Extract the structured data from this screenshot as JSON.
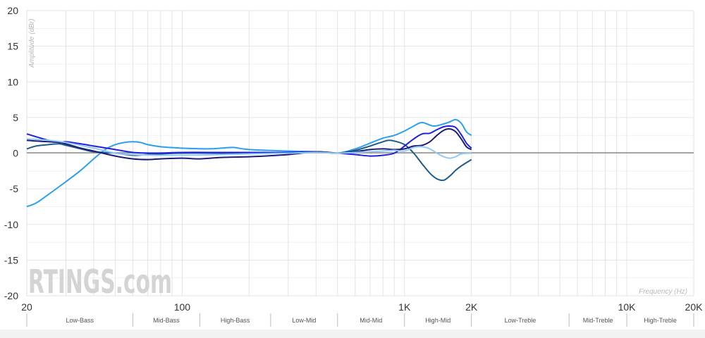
{
  "chart_data": {
    "type": "line",
    "title": "",
    "xlabel": "Frequency (Hz)",
    "ylabel": "Amplitude (dBr)",
    "xscale": "log",
    "xlim": [
      20,
      20000
    ],
    "ylim": [
      -20,
      20
    ],
    "grid": true,
    "legend": null,
    "watermark": "RTINGS.com",
    "yticks": [
      20,
      15,
      10,
      5,
      0,
      -5,
      -10,
      -15,
      -20
    ],
    "xticks": [
      {
        "value": 20,
        "label": "20"
      },
      {
        "value": 100,
        "label": "100"
      },
      {
        "value": 1000,
        "label": "1K"
      },
      {
        "value": 2000,
        "label": "2K"
      },
      {
        "value": 10000,
        "label": "10K"
      },
      {
        "value": 20000,
        "label": "20K"
      }
    ],
    "minor_gridlines_hz": [
      30,
      40,
      50,
      60,
      70,
      80,
      90,
      200,
      300,
      400,
      500,
      600,
      700,
      800,
      900,
      3000,
      4000,
      5000,
      6000,
      7000,
      8000,
      9000
    ],
    "bands": [
      {
        "label": "Low-Bass",
        "from": 20,
        "to": 60
      },
      {
        "label": "Mid-Bass",
        "from": 60,
        "to": 120
      },
      {
        "label": "High-Bass",
        "from": 120,
        "to": 250
      },
      {
        "label": "Low-Mid",
        "from": 250,
        "to": 500
      },
      {
        "label": "Mid-Mid",
        "from": 500,
        "to": 1000
      },
      {
        "label": "High-Mid",
        "from": 1000,
        "to": 2000
      },
      {
        "label": "Low-Treble",
        "from": 2000,
        "to": 5500
      },
      {
        "label": "Mid-Treble",
        "from": 5500,
        "to": 10000
      },
      {
        "label": "High-Treble",
        "from": 10000,
        "to": 20000
      }
    ],
    "series": [
      {
        "name": "series-1",
        "color": "#2b9ff0",
        "x": [
          20,
          22,
          25,
          30,
          35,
          40,
          45,
          50,
          55,
          60,
          65,
          70,
          80,
          100,
          130,
          150,
          170,
          200,
          300,
          400,
          500,
          600,
          700,
          800,
          900,
          1000,
          1100,
          1200,
          1350,
          1500,
          1600,
          1700,
          1800,
          1900,
          2000
        ],
        "values": [
          -7.5,
          -7.0,
          -5.8,
          -4.0,
          -2.4,
          -0.8,
          0.5,
          1.2,
          1.5,
          1.6,
          1.5,
          1.2,
          0.9,
          0.7,
          0.6,
          0.7,
          0.8,
          0.5,
          0.3,
          0.2,
          0.0,
          0.6,
          1.4,
          2.1,
          2.5,
          3.1,
          3.8,
          4.3,
          3.8,
          4.1,
          4.4,
          4.7,
          4.2,
          3.0,
          2.5
        ]
      },
      {
        "name": "series-2",
        "color": "#1e5b8a",
        "x": [
          20,
          22,
          25,
          28,
          30,
          35,
          40,
          50,
          60,
          70,
          80,
          100,
          150,
          200,
          300,
          400,
          500,
          600,
          700,
          800,
          850,
          900,
          1000,
          1100,
          1200,
          1300,
          1400,
          1500,
          1600,
          1700,
          1800,
          2000
        ],
        "values": [
          0.6,
          1.0,
          1.2,
          1.3,
          1.1,
          0.6,
          0.2,
          0.0,
          -0.3,
          -0.2,
          -0.1,
          0.0,
          0.0,
          0.0,
          0.1,
          0.2,
          0.0,
          0.4,
          1.0,
          1.6,
          1.8,
          1.7,
          1.2,
          0.0,
          -1.5,
          -2.8,
          -3.6,
          -3.8,
          -3.2,
          -2.4,
          -1.8,
          -0.9
        ]
      },
      {
        "name": "series-3",
        "color": "#2020e0",
        "x": [
          20,
          22,
          25,
          28,
          30,
          35,
          40,
          50,
          60,
          70,
          80,
          100,
          150,
          200,
          300,
          400,
          500,
          600,
          700,
          800,
          900,
          1000,
          1100,
          1200,
          1300,
          1400,
          1500,
          1600,
          1700,
          1800,
          1900,
          2000
        ],
        "values": [
          2.7,
          2.3,
          1.8,
          1.5,
          1.6,
          1.3,
          1.0,
          0.5,
          0.1,
          0.0,
          0.0,
          0.1,
          0.1,
          0.1,
          0.1,
          0.2,
          0.0,
          -0.2,
          -0.4,
          -0.3,
          0.0,
          1.0,
          2.0,
          2.7,
          2.8,
          3.3,
          3.7,
          3.8,
          3.6,
          2.6,
          1.4,
          0.7
        ]
      },
      {
        "name": "series-4",
        "color": "#1c1c78",
        "x": [
          20,
          22,
          25,
          28,
          30,
          35,
          40,
          50,
          60,
          70,
          80,
          100,
          120,
          150,
          200,
          300,
          400,
          500,
          600,
          700,
          800,
          900,
          1000,
          1100,
          1200,
          1300,
          1400,
          1500,
          1600,
          1700,
          1800,
          1900,
          2000
        ],
        "values": [
          1.8,
          1.7,
          1.6,
          1.5,
          1.3,
          0.7,
          0.3,
          -0.4,
          -0.8,
          -0.9,
          -0.8,
          -0.7,
          -0.8,
          -0.6,
          -0.5,
          -0.2,
          0.2,
          0.0,
          0.2,
          0.5,
          0.6,
          0.5,
          0.6,
          1.0,
          1.1,
          1.6,
          2.5,
          3.2,
          3.4,
          3.0,
          2.0,
          0.9,
          0.5
        ]
      },
      {
        "name": "series-5",
        "color": "#92c9f5",
        "x": [
          20,
          25,
          30,
          40,
          50,
          60,
          80,
          100,
          150,
          200,
          300,
          400,
          500,
          600,
          700,
          800,
          900,
          1000,
          1100,
          1200,
          1300,
          1400,
          1500,
          1600,
          1700,
          1800,
          2000
        ],
        "values": [
          2.0,
          1.8,
          1.5,
          0.7,
          0.0,
          -0.2,
          -0.3,
          -0.3,
          -0.2,
          -0.1,
          0.0,
          0.1,
          0.0,
          0.1,
          0.2,
          0.3,
          0.4,
          0.3,
          0.8,
          0.9,
          0.6,
          0.0,
          -0.5,
          -0.7,
          -0.5,
          -0.1,
          0.0
        ]
      }
    ]
  }
}
